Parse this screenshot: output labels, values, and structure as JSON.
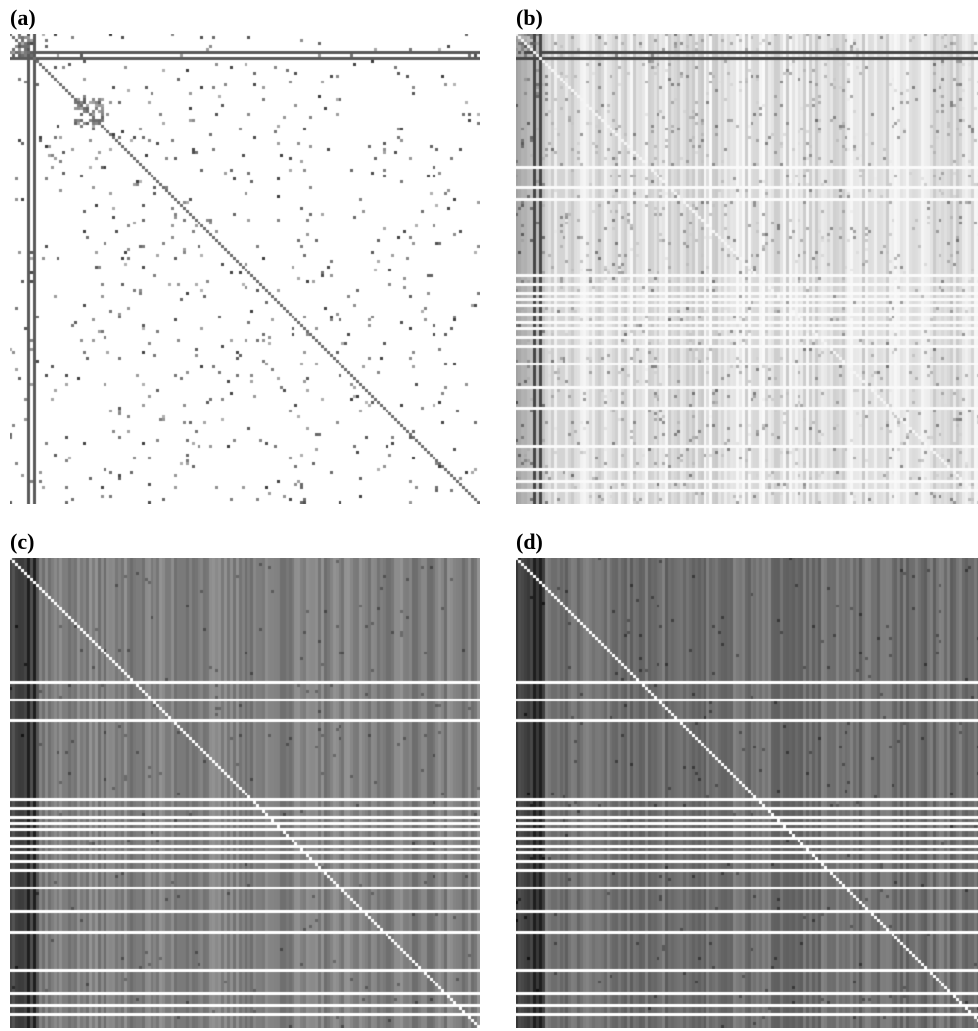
{
  "chart_data": [
    {
      "type": "heatmap",
      "panel_label": "(a)",
      "size": 160,
      "seed": 11,
      "style": "sparse",
      "background_gray": 255,
      "bands_dark": [
        6,
        8
      ],
      "bands_light": [],
      "dense_blocks": [
        [
          0,
          8,
          0,
          8
        ],
        [
          22,
          32,
          22,
          32
        ]
      ]
    },
    {
      "type": "heatmap",
      "panel_label": "(b)",
      "size": 160,
      "seed": 23,
      "style": "textured",
      "background_gray": 225,
      "bands_dark": [
        6,
        8
      ],
      "bands_light": [
        45,
        52,
        56,
        82,
        85,
        88,
        90,
        92,
        95,
        98,
        100,
        103,
        106,
        112,
        120,
        127,
        140,
        148,
        152,
        155
      ],
      "dense_blocks": [
        [
          0,
          8,
          0,
          8
        ]
      ]
    },
    {
      "type": "heatmap",
      "panel_label": "(c)",
      "size": 160,
      "seed": 37,
      "style": "dense",
      "background_gray": 128,
      "bands_dark": [
        6,
        8
      ],
      "bands_light": [
        42,
        48,
        55,
        82,
        85,
        88,
        90,
        92,
        95,
        98,
        100,
        103,
        106,
        112,
        120,
        127,
        140,
        148,
        152,
        155
      ],
      "dense_blocks": []
    },
    {
      "type": "heatmap",
      "panel_label": "(d)",
      "size": 160,
      "seed": 51,
      "style": "dense",
      "background_gray": 112,
      "bands_dark": [
        6,
        8
      ],
      "bands_light": [
        42,
        48,
        55,
        82,
        85,
        88,
        90,
        92,
        95,
        98,
        100,
        103,
        106,
        112,
        120,
        127,
        140,
        148,
        152,
        155
      ],
      "dense_blocks": []
    }
  ]
}
